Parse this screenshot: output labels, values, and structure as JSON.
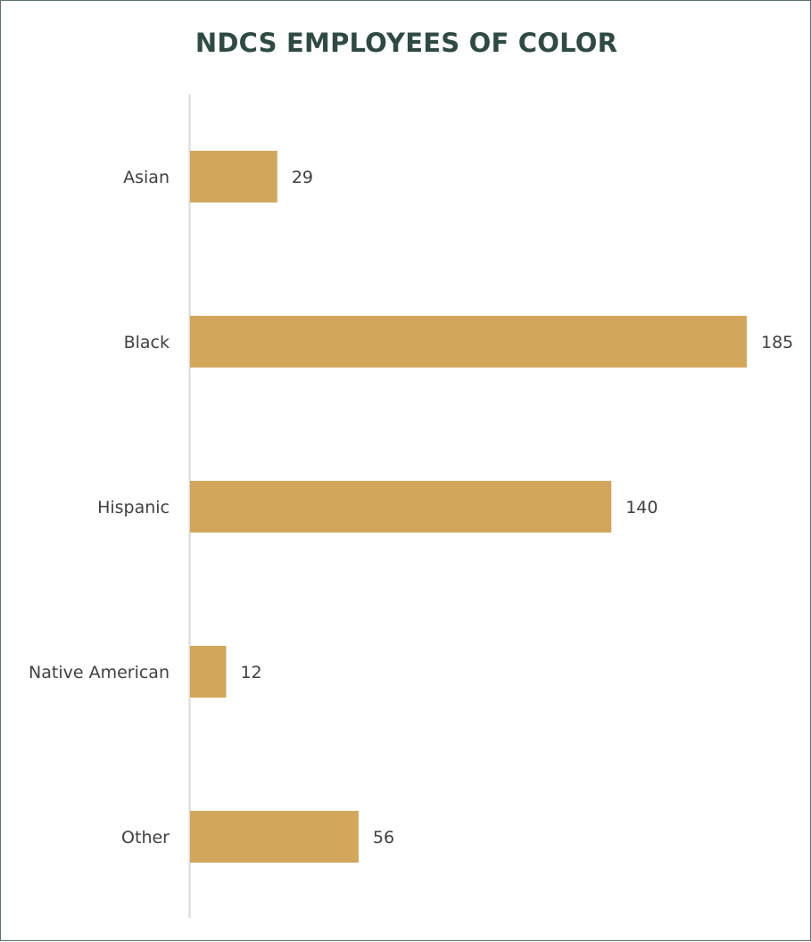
{
  "chart_data": {
    "type": "bar",
    "orientation": "horizontal",
    "title": "NDCS EMPLOYEES OF COLOR",
    "categories": [
      "Asian",
      "Black",
      "Hispanic",
      "Native American",
      "Other"
    ],
    "values": [
      29,
      185,
      140,
      12,
      56
    ],
    "xlabel": "",
    "ylabel": "",
    "xlim": [
      0,
      200
    ],
    "grid": false,
    "legend": "none",
    "data_labels": true,
    "bar_color": "#D2A75C",
    "axis_color": "#D9D9D9",
    "title_color": "#2F4A44",
    "label_color": "#404040"
  }
}
